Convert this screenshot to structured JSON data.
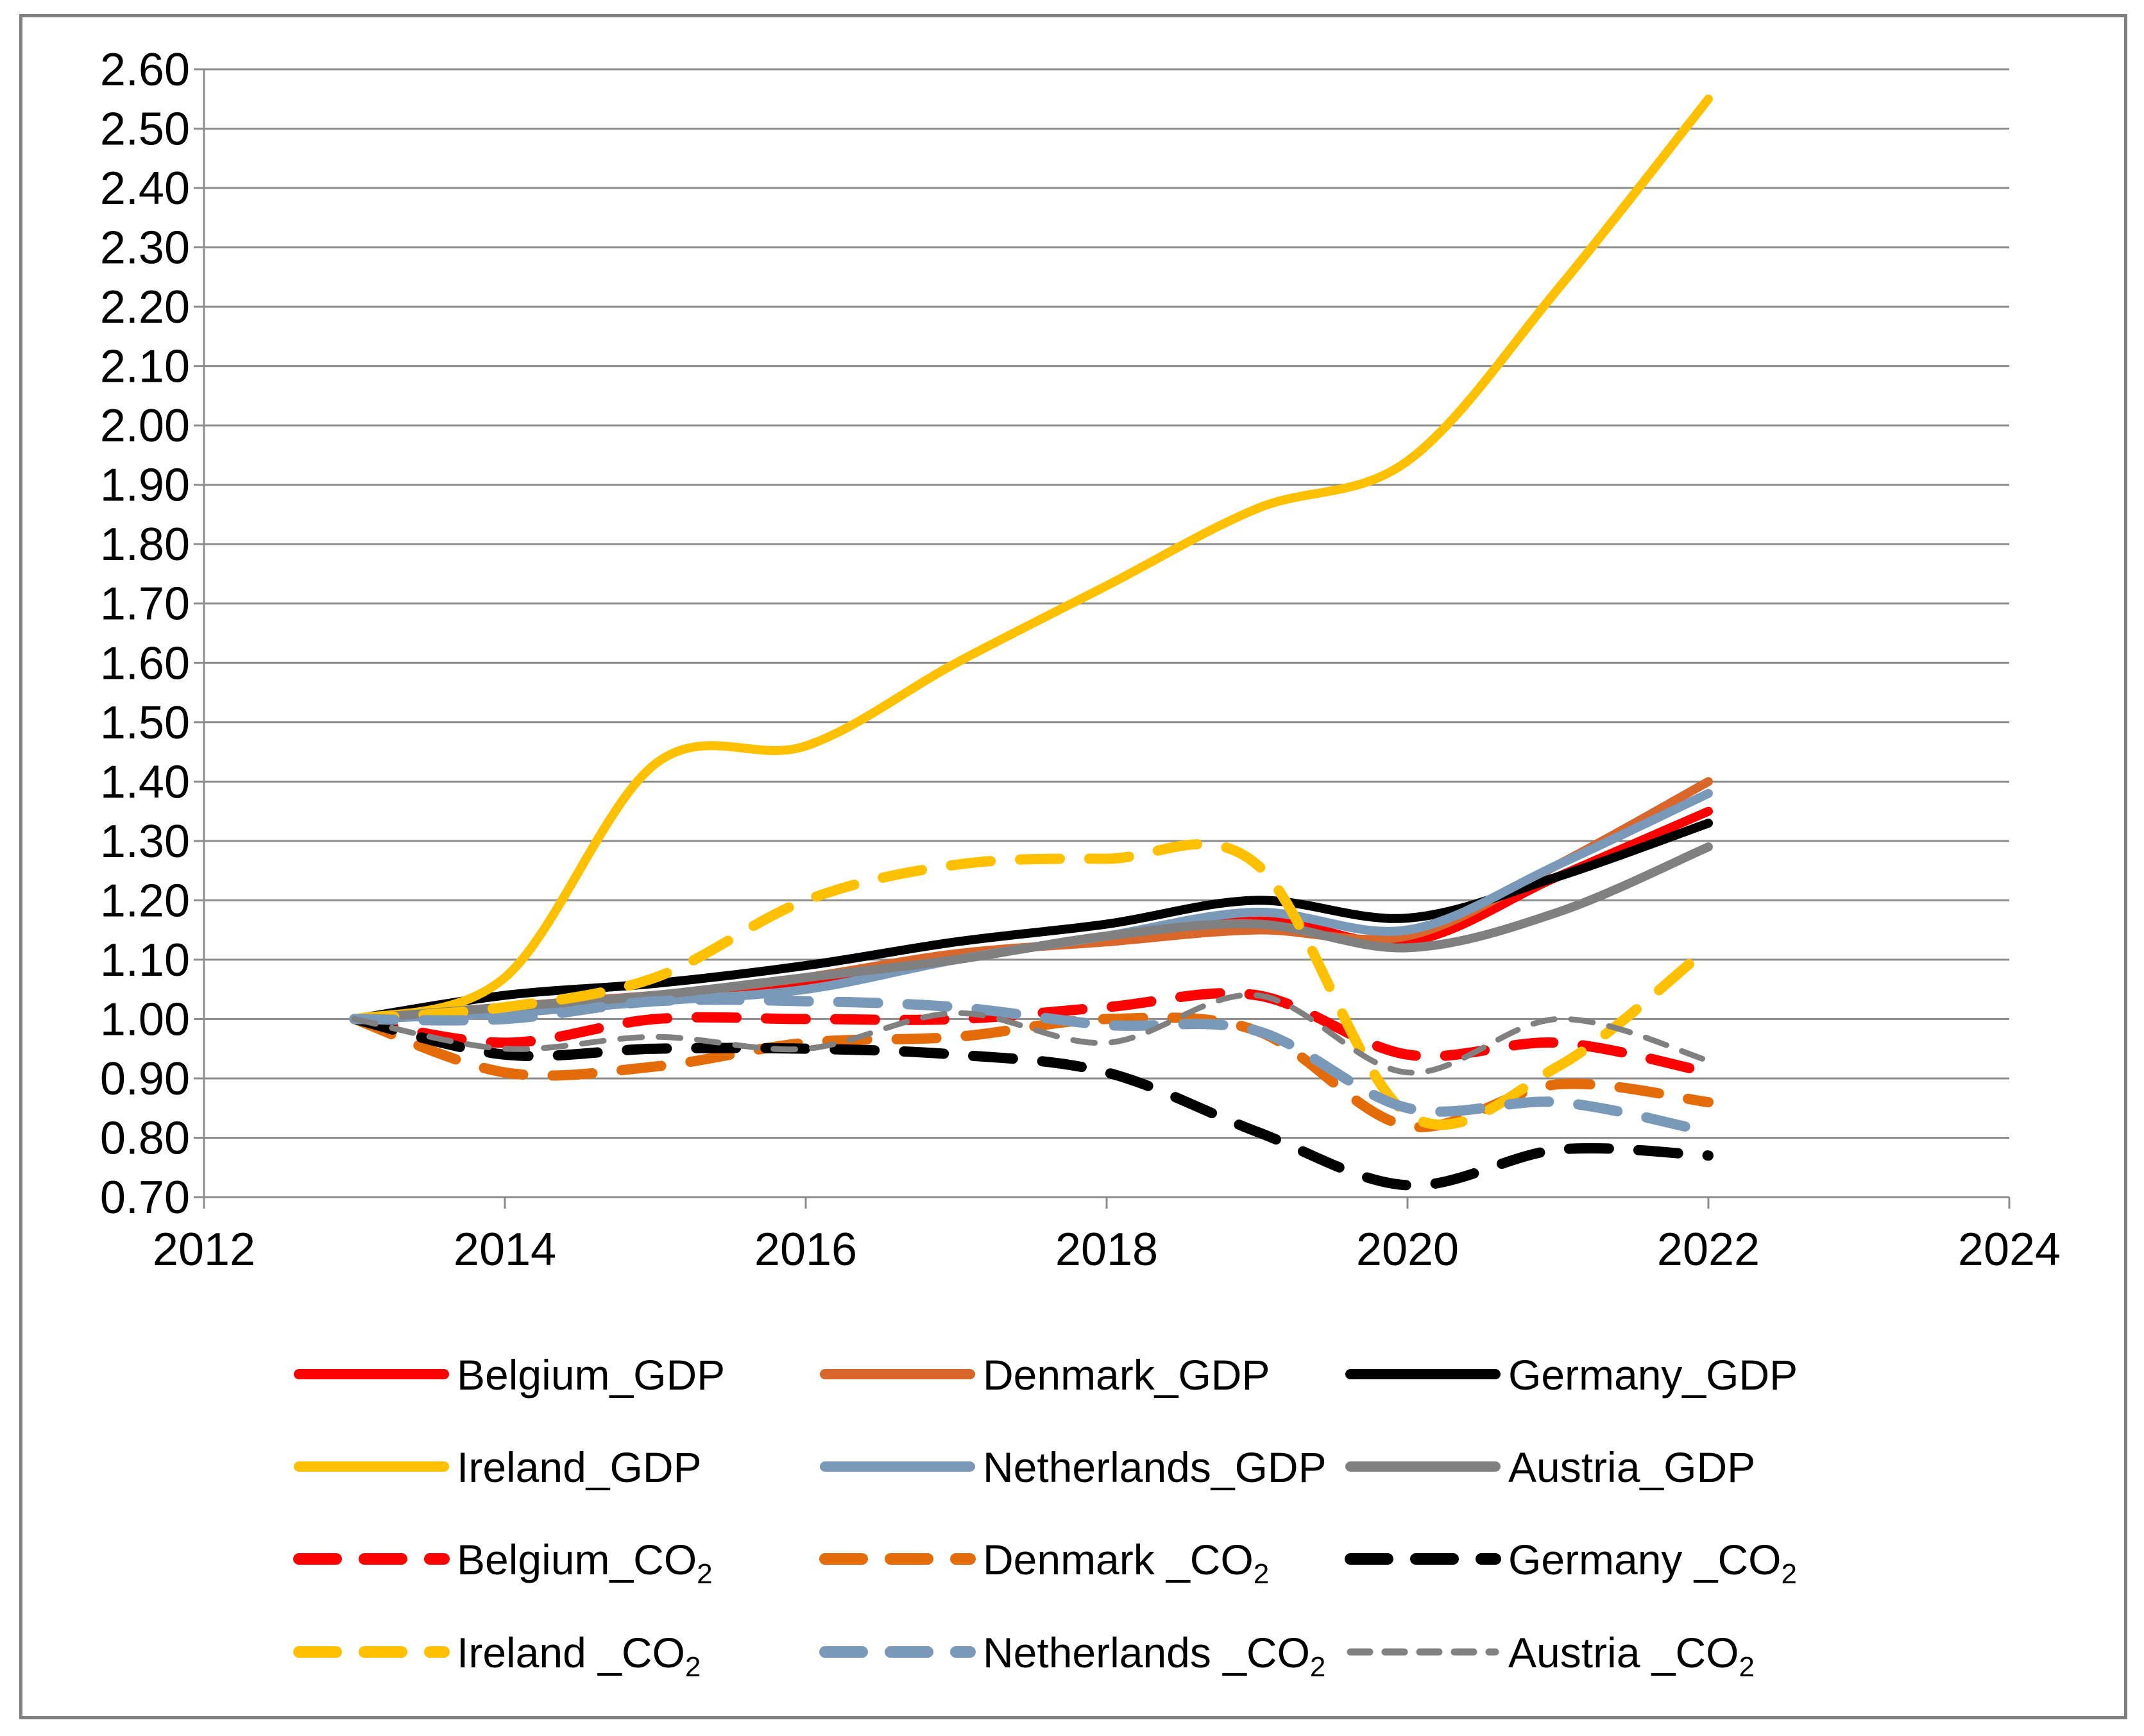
{
  "chart_data": {
    "type": "line",
    "title": "",
    "xlabel": "",
    "ylabel": "",
    "xlim": [
      2012,
      2024
    ],
    "ylim": [
      0.7,
      2.6
    ],
    "x_ticks": [
      "2012",
      "2014",
      "2016",
      "2018",
      "2020",
      "2022",
      "2024"
    ],
    "y_ticks": [
      "0.70",
      "0.80",
      "0.90",
      "1.00",
      "1.10",
      "1.20",
      "1.30",
      "1.40",
      "1.50",
      "1.60",
      "1.70",
      "1.80",
      "1.90",
      "2.00",
      "2.10",
      "2.20",
      "2.30",
      "2.40",
      "2.50",
      "2.60"
    ],
    "grid": true,
    "legend_position": "bottom",
    "x": [
      2013,
      2014,
      2015,
      2016,
      2017,
      2018,
      2019,
      2020,
      2021,
      2022
    ],
    "series": [
      {
        "name": "Belgium_GDP",
        "legend_base": "Belgium_GDP",
        "legend_sub": "",
        "color": "#ff0000",
        "dash": "solid",
        "values": [
          1.0,
          1.02,
          1.04,
          1.06,
          1.1,
          1.14,
          1.17,
          1.13,
          1.24,
          1.35
        ]
      },
      {
        "name": "Denmark_GDP",
        "legend_base": "Denmark_GDP",
        "legend_sub": "",
        "color": "#d9662a",
        "dash": "solid",
        "values": [
          1.0,
          1.02,
          1.04,
          1.07,
          1.11,
          1.13,
          1.15,
          1.14,
          1.26,
          1.4
        ]
      },
      {
        "name": "Germany_GDP",
        "legend_base": "Germany_GDP",
        "legend_sub": "",
        "color": "#000000",
        "dash": "solid",
        "values": [
          1.0,
          1.04,
          1.06,
          1.09,
          1.13,
          1.16,
          1.2,
          1.17,
          1.24,
          1.33
        ]
      },
      {
        "name": "Ireland_GDP",
        "legend_base": "Ireland_GDP",
        "legend_sub": "",
        "color": "#ffc000",
        "dash": "solid",
        "values": [
          1.0,
          1.07,
          1.43,
          1.46,
          1.6,
          1.73,
          1.86,
          1.94,
          2.23,
          2.55
        ]
      },
      {
        "name": "Netherlands_GDP",
        "legend_base": "Netherlands_GDP",
        "legend_sub": "",
        "color": "#7a99b8",
        "dash": "solid",
        "values": [
          1.0,
          1.01,
          1.03,
          1.05,
          1.1,
          1.14,
          1.18,
          1.15,
          1.26,
          1.38
        ]
      },
      {
        "name": "Austria_GDP",
        "legend_base": "Austria_GDP",
        "legend_sub": "",
        "color": "#808080",
        "dash": "solid",
        "values": [
          1.0,
          1.02,
          1.04,
          1.07,
          1.1,
          1.14,
          1.16,
          1.12,
          1.18,
          1.29
        ]
      },
      {
        "name": "Belgium_CO2",
        "legend_base": "Belgium_CO",
        "legend_sub": "2",
        "color": "#ff0000",
        "dash": "dash",
        "values": [
          1.0,
          0.96,
          1.0,
          1.0,
          1.0,
          1.02,
          1.04,
          0.94,
          0.96,
          0.91
        ]
      },
      {
        "name": "Denmark _CO2",
        "legend_base": "Denmark _CO",
        "legend_sub": "2",
        "color": "#e36c09",
        "dash": "dash",
        "values": [
          1.0,
          0.91,
          0.92,
          0.96,
          0.97,
          1.0,
          0.98,
          0.82,
          0.89,
          0.86
        ]
      },
      {
        "name": "Germany _CO2",
        "legend_base": "Germany _CO",
        "legend_sub": "2",
        "color": "#000000",
        "dash": "dash",
        "values": [
          1.0,
          0.94,
          0.95,
          0.95,
          0.94,
          0.91,
          0.81,
          0.72,
          0.78,
          0.77
        ]
      },
      {
        "name": "Ireland _CO2",
        "legend_base": "Ireland _CO",
        "legend_sub": "2",
        "color": "#ffc000",
        "dash": "dash",
        "values": [
          1.0,
          1.02,
          1.07,
          1.2,
          1.26,
          1.27,
          1.26,
          0.84,
          0.92,
          1.12
        ]
      },
      {
        "name": "Netherlands _CO2",
        "legend_base": "Netherlands _CO",
        "legend_sub": "2",
        "color": "#7a99b8",
        "dash": "dash",
        "values": [
          1.0,
          1.0,
          1.03,
          1.03,
          1.02,
          0.99,
          0.98,
          0.85,
          0.86,
          0.81
        ]
      },
      {
        "name": "Austria _CO2",
        "legend_base": "Austria _CO",
        "legend_sub": "2",
        "color": "#808080",
        "dash": "short-dash",
        "values": [
          1.0,
          0.95,
          0.97,
          0.95,
          1.01,
          0.96,
          1.04,
          0.91,
          1.0,
          0.93
        ]
      }
    ]
  }
}
